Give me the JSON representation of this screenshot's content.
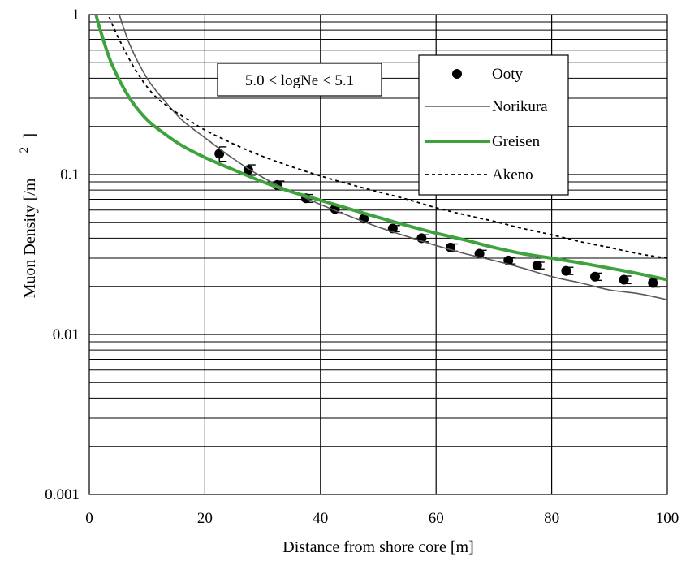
{
  "chart_data": {
    "type": "line",
    "title": "",
    "xlabel": "Distance from shore core [m]",
    "ylabel": "Muon Density [/m",
    "ylabel_sup": "2",
    "ylabel_close": "]",
    "xlim": [
      0,
      100
    ],
    "ylim": [
      0.001,
      1
    ],
    "yscale": "log",
    "grid": true,
    "x_ticks": [
      0,
      20,
      40,
      60,
      80,
      100
    ],
    "x_tick_labels": [
      "0",
      "20",
      "40",
      "60",
      "80",
      "100"
    ],
    "y_ticks": [
      0.001,
      0.01,
      0.1,
      1
    ],
    "y_tick_labels": [
      "0.001",
      "0.01",
      "0.1",
      "1"
    ],
    "annotation": "5.0 < logNe < 5.1",
    "legend_position": "top-right",
    "series": [
      {
        "name": "Ooty",
        "kind": "points-with-errorbars",
        "color": "#000000",
        "x": [
          22.5,
          27.5,
          32.5,
          37.5,
          42.5,
          47.5,
          52.5,
          57.5,
          62.5,
          67.5,
          72.5,
          77.5,
          82.5,
          87.5,
          92.5,
          97.5
        ],
        "y": [
          0.135,
          0.107,
          0.086,
          0.071,
          0.061,
          0.053,
          0.046,
          0.04,
          0.035,
          0.032,
          0.029,
          0.027,
          0.025,
          0.023,
          0.022,
          0.021
        ],
        "err": [
          0.014,
          0.008,
          0.005,
          0.004,
          0.003,
          0.003,
          0.002,
          0.002,
          0.0018,
          0.0016,
          0.0014,
          0.0013,
          0.0013,
          0.0012,
          0.0012,
          0.0012
        ]
      },
      {
        "name": "Norikura",
        "kind": "line",
        "color": "#5a5a5a",
        "x": [
          5,
          7,
          10,
          13,
          16,
          20,
          25,
          30,
          35,
          40,
          45,
          50,
          55,
          60,
          65,
          70,
          75,
          80,
          85,
          90,
          95,
          100
        ],
        "y": [
          1.05,
          0.65,
          0.4,
          0.29,
          0.22,
          0.17,
          0.125,
          0.096,
          0.078,
          0.065,
          0.055,
          0.047,
          0.041,
          0.036,
          0.032,
          0.029,
          0.026,
          0.023,
          0.021,
          0.019,
          0.018,
          0.0165
        ]
      },
      {
        "name": "Greisen",
        "kind": "line",
        "color": "#3ea33e",
        "x": [
          1,
          2,
          4,
          7,
          10,
          13,
          16,
          20,
          25,
          30,
          35,
          40,
          45,
          50,
          55,
          60,
          65,
          70,
          75,
          80,
          85,
          90,
          95,
          100
        ],
        "y": [
          1.05,
          0.78,
          0.48,
          0.3,
          0.22,
          0.18,
          0.152,
          0.128,
          0.107,
          0.09,
          0.078,
          0.069,
          0.061,
          0.054,
          0.048,
          0.043,
          0.039,
          0.035,
          0.032,
          0.03,
          0.028,
          0.026,
          0.024,
          0.022
        ]
      },
      {
        "name": "Akeno",
        "kind": "dashed-line",
        "color": "#000000",
        "x": [
          3,
          5,
          8,
          11,
          14,
          18,
          20,
          25,
          30,
          35,
          40,
          45,
          50,
          55,
          60,
          65,
          70,
          75,
          80,
          85,
          90,
          95,
          100
        ],
        "y": [
          1.05,
          0.72,
          0.45,
          0.32,
          0.26,
          0.21,
          0.19,
          0.155,
          0.13,
          0.112,
          0.098,
          0.087,
          0.078,
          0.07,
          0.062,
          0.056,
          0.051,
          0.046,
          0.042,
          0.038,
          0.035,
          0.032,
          0.03
        ]
      }
    ]
  }
}
